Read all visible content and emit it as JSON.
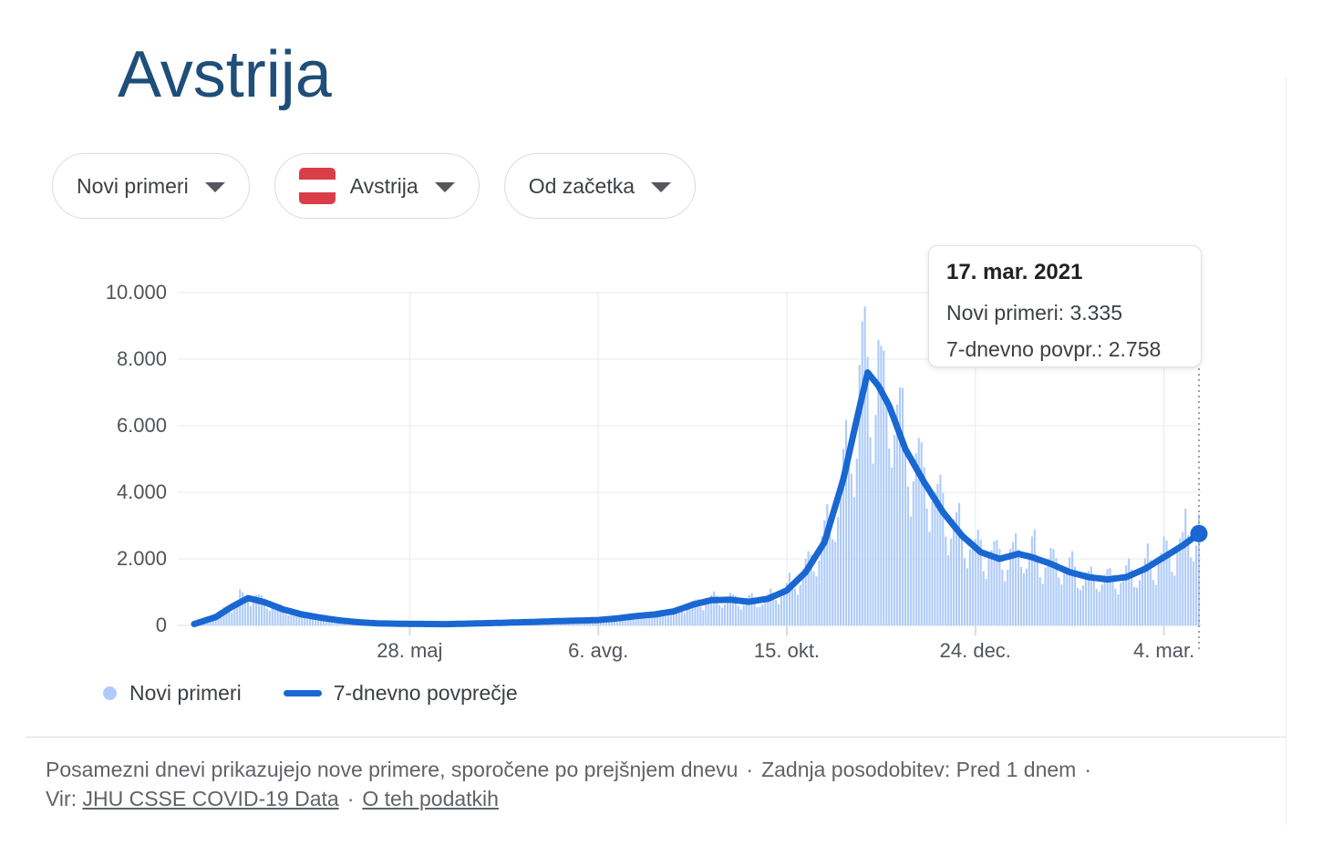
{
  "page": {
    "title": "Avstrija"
  },
  "filters": {
    "metric": {
      "label": "Novi primeri"
    },
    "region": {
      "label": "Avstrija",
      "flag": "austria"
    },
    "range": {
      "label": "Od začetka"
    }
  },
  "tooltip": {
    "date": "17. mar. 2021",
    "new_cases": "Novi primeri: 3.335",
    "avg": "7-dnevno povpr.: 2.758"
  },
  "legend": [
    {
      "label": "Novi primeri"
    },
    {
      "label": "7-dnevno povprečje"
    }
  ],
  "footer": {
    "note": "Posamezni dnevi prikazujejo nove primere, sporočene po prejšnjem dnevu",
    "separator": "·",
    "updated": "Zadnja posodobitev: Pred 1 dnem",
    "source_label": "Vir:",
    "source_link": "JHU CSSE COVID-19 Data",
    "about_link": "O teh podatkih"
  },
  "colors": {
    "bar": "#aecbfa",
    "line": "#1967d2",
    "title": "#1e4e79",
    "flag_red": "#da3e49",
    "grid": "#e9ebef",
    "grid_zero": "#dadce0",
    "tick": "#dadce0",
    "axis_text": "#50545a",
    "text": "#3c4043",
    "muted": "#5f6368",
    "border": "#dadce0",
    "indicator": "#9aa0a6"
  },
  "chart_data": {
    "type": "bar+line",
    "start_date": "2020-03-09",
    "end_date": "2021-03-17",
    "days": 373,
    "ylim": [
      0,
      10000
    ],
    "grid": true,
    "legend_position": "bottom",
    "y_ticks": [
      {
        "label": "0",
        "value": 0
      },
      {
        "label": "2.000",
        "value": 2000
      },
      {
        "label": "4.000",
        "value": 4000
      },
      {
        "label": "6.000",
        "value": 6000
      },
      {
        "label": "8.000",
        "value": 8000
      },
      {
        "label": "10.000",
        "value": 10000
      }
    ],
    "x_ticks": [
      {
        "label": "28. maj",
        "day": 80
      },
      {
        "label": "6. avg.",
        "day": 150
      },
      {
        "label": "15. okt.",
        "day": 220
      },
      {
        "label": "24. dec.",
        "day": 290
      },
      {
        "label": "4. mar.",
        "day": 360
      }
    ],
    "series": [
      {
        "name": "Novi primeri",
        "type": "bar",
        "weekly_pattern": [
          0.66,
          0.86,
          1.06,
          1.18,
          1.28,
          1.06,
          0.78
        ],
        "noise": [
          0.93,
          0.2
        ],
        "clamp_max": 9590,
        "overrides": {
          "17": 1080,
          "373": 3335
        },
        "last_value": 3335
      },
      {
        "name": "7-dnevno povprečje",
        "type": "line",
        "last_value": 2758,
        "anchors": [
          [
            0,
            40
          ],
          [
            8,
            250
          ],
          [
            14,
            560
          ],
          [
            20,
            820
          ],
          [
            26,
            700
          ],
          [
            33,
            480
          ],
          [
            40,
            330
          ],
          [
            47,
            230
          ],
          [
            54,
            150
          ],
          [
            61,
            95
          ],
          [
            68,
            60
          ],
          [
            80,
            45
          ],
          [
            94,
            38
          ],
          [
            108,
            65
          ],
          [
            122,
            95
          ],
          [
            136,
            130
          ],
          [
            150,
            160
          ],
          [
            157,
            210
          ],
          [
            164,
            280
          ],
          [
            171,
            330
          ],
          [
            178,
            420
          ],
          [
            185,
            620
          ],
          [
            192,
            760
          ],
          [
            199,
            770
          ],
          [
            206,
            710
          ],
          [
            213,
            800
          ],
          [
            220,
            1050
          ],
          [
            227,
            1600
          ],
          [
            234,
            2500
          ],
          [
            241,
            4400
          ],
          [
            246,
            6200
          ],
          [
            250,
            7600
          ],
          [
            254,
            7200
          ],
          [
            258,
            6600
          ],
          [
            264,
            5300
          ],
          [
            271,
            4300
          ],
          [
            278,
            3400
          ],
          [
            285,
            2700
          ],
          [
            292,
            2200
          ],
          [
            299,
            2000
          ],
          [
            306,
            2150
          ],
          [
            311,
            2050
          ],
          [
            318,
            1850
          ],
          [
            325,
            1600
          ],
          [
            332,
            1450
          ],
          [
            339,
            1380
          ],
          [
            346,
            1450
          ],
          [
            353,
            1700
          ],
          [
            360,
            2050
          ],
          [
            367,
            2400
          ],
          [
            373,
            2758
          ]
        ]
      }
    ],
    "selected_point": {
      "date": "17. mar. 2021",
      "novi_primeri": 3335,
      "sedemdnevno_povprecje": 2758,
      "day": 373
    }
  }
}
